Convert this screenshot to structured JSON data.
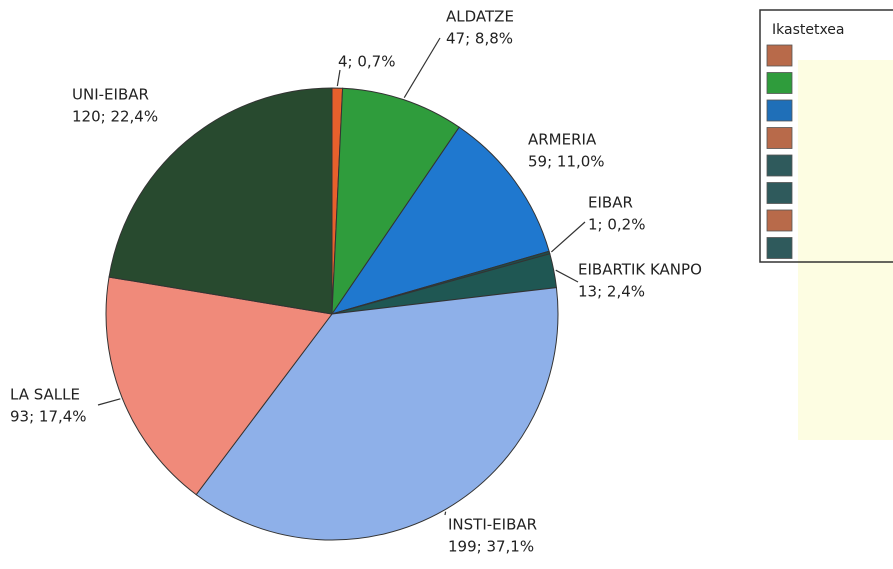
{
  "chart_data": {
    "type": "pie",
    "categories": [
      null,
      "ALDATZE",
      "ARMERIA",
      "EIBAR",
      "EIBARTIK KANPO",
      "INSTI-EIBAR",
      "LA SALLE",
      "UNI-EIBAR"
    ],
    "values": [
      4,
      47,
      59,
      1,
      13,
      199,
      93,
      120
    ],
    "value_labels": [
      "4; 0,7%",
      "47; 8,8%",
      "59; 11,0%",
      "1; 0,2%",
      "13; 2,4%",
      "199; 37,1%",
      "93; 17,4%",
      "120; 22,4%"
    ],
    "colors": [
      "#e8602c",
      "#2f9c3c",
      "#1f78cf",
      "#1f4d4a",
      "#1f5753",
      "#8eb0e9",
      "#f08a7a",
      "#284a2f"
    ],
    "legend": {
      "title": "Ikastetxea",
      "colors": [
        "#b86a4a",
        "#2f9c3c",
        "#1f6fb8",
        "#b86a4a",
        "#2f5a5c",
        "#2f5a5c",
        "#b86a4a",
        "#2f5a5c"
      ]
    }
  }
}
